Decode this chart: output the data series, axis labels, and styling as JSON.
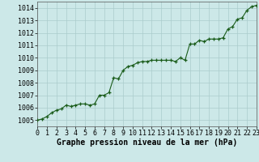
{
  "x": [
    0,
    0.5,
    1,
    1.5,
    2,
    2.5,
    3,
    3.5,
    4,
    4.5,
    5,
    5.5,
    6,
    6.5,
    7,
    7.5,
    8,
    8.5,
    9,
    9.5,
    10,
    10.5,
    11,
    11.5,
    12,
    12.5,
    13,
    13.5,
    14,
    14.5,
    15,
    15.5,
    16,
    16.5,
    17,
    17.5,
    18,
    18.5,
    19,
    19.5,
    20,
    20.5,
    21,
    21.5,
    22,
    22.5,
    23
  ],
  "y": [
    1005.0,
    1005.1,
    1005.3,
    1005.6,
    1005.8,
    1005.9,
    1006.2,
    1006.1,
    1006.2,
    1006.3,
    1006.3,
    1006.2,
    1006.3,
    1007.0,
    1007.0,
    1007.2,
    1008.4,
    1008.3,
    1009.0,
    1009.3,
    1009.4,
    1009.6,
    1009.7,
    1009.7,
    1009.8,
    1009.8,
    1009.8,
    1009.8,
    1009.8,
    1009.7,
    1010.0,
    1009.8,
    1011.1,
    1011.1,
    1011.4,
    1011.3,
    1011.5,
    1011.5,
    1011.5,
    1011.6,
    1012.3,
    1012.5,
    1013.1,
    1013.2,
    1013.8,
    1014.1,
    1014.2
  ],
  "line_color": "#1a5c1a",
  "marker_color": "#1a5c1a",
  "bg_color": "#cce8e8",
  "grid_color": "#aacccc",
  "xlabel": "Graphe pression niveau de la mer (hPa)",
  "xlim": [
    0,
    23
  ],
  "ylim": [
    1004.5,
    1014.5
  ],
  "yticks": [
    1005,
    1006,
    1007,
    1008,
    1009,
    1010,
    1011,
    1012,
    1013,
    1014
  ],
  "xticks": [
    0,
    1,
    2,
    3,
    4,
    5,
    6,
    7,
    8,
    9,
    10,
    11,
    12,
    13,
    14,
    15,
    16,
    17,
    18,
    19,
    20,
    21,
    22,
    23
  ],
  "xlabel_fontsize": 7.0,
  "tick_fontsize": 6.0,
  "marker_size": 3.0,
  "line_width": 0.8
}
